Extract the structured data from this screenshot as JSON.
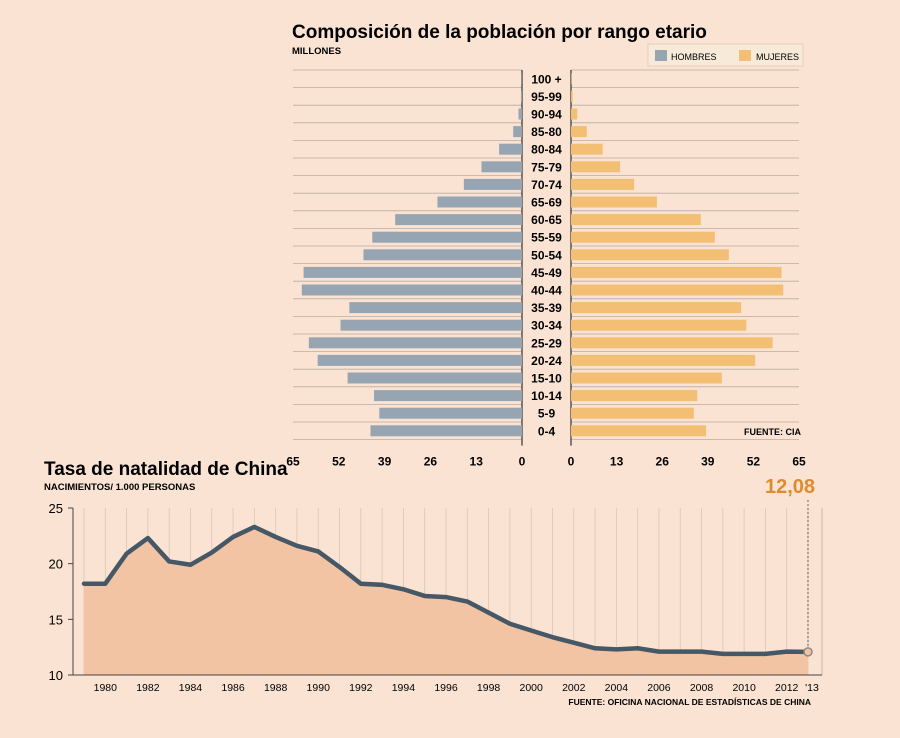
{
  "chart_data": [
    {
      "type": "bar",
      "subtype": "population-pyramid",
      "title": "Composición de la población por rango etario",
      "unit_label": "MILLONES",
      "source": "FUENTE: CIA",
      "categories": [
        "100 +",
        "95-99",
        "90-94",
        "85-80",
        "80-84",
        "75-79",
        "70-74",
        "65-69",
        "60-65",
        "55-59",
        "50-54",
        "45-49",
        "40-44",
        "35-39",
        "30-34",
        "25-29",
        "20-24",
        "15-10",
        "10-14",
        "5-9",
        "0-4"
      ],
      "series": [
        {
          "name": "HOMBRES",
          "color": "#97a5b3",
          "values": [
            0.05,
            0.3,
            1.0,
            2.5,
            6.5,
            11.5,
            16.5,
            24,
            36,
            42.5,
            45,
            62,
            62.5,
            49,
            51.5,
            60.5,
            58,
            49.5,
            42,
            40.5,
            43
          ]
        },
        {
          "name": "MUJERES",
          "color": "#f2bf74",
          "values": [
            0.1,
            0.5,
            1.8,
            4.5,
            9,
            14,
            18,
            24.5,
            37,
            41,
            45,
            60,
            60.5,
            48.5,
            50,
            57.5,
            52.5,
            43,
            36,
            35,
            38.5
          ]
        }
      ],
      "x_ticks": [
        65,
        52,
        39,
        26,
        13,
        0
      ],
      "xlim": [
        0,
        65
      ]
    },
    {
      "type": "area",
      "title": "Tasa de natalidad de China",
      "subtitle": "NACIMIENTOS/ 1.000 PERSONAS",
      "source": "FUENTE: OFICINA NACIONAL DE ESTADÍSTICAS DE CHINA",
      "highlight_label": "12,08",
      "line_color": "#465765",
      "fill_color": "#f2c4a3",
      "highlight_color": "#e08a2c",
      "ylim": [
        10,
        25
      ],
      "y_ticks": [
        10,
        15,
        20,
        25
      ],
      "x_tick_labels": [
        "1980",
        "1982",
        "1984",
        "1986",
        "1988",
        "1990",
        "1992",
        "1994",
        "1996",
        "1998",
        "2000",
        "2002",
        "2004",
        "2006",
        "2008",
        "2010",
        "2012",
        "'13"
      ],
      "x": [
        1979,
        1980,
        1981,
        1982,
        1983,
        1984,
        1985,
        1986,
        1987,
        1988,
        1989,
        1990,
        1991,
        1992,
        1993,
        1994,
        1995,
        1996,
        1997,
        1998,
        1999,
        2000,
        2001,
        2002,
        2003,
        2004,
        2005,
        2006,
        2007,
        2008,
        2009,
        2010,
        2011,
        2012,
        2013
      ],
      "values": [
        18.2,
        18.2,
        20.9,
        22.3,
        20.2,
        19.9,
        21.0,
        22.4,
        23.3,
        22.4,
        21.6,
        21.1,
        19.7,
        18.2,
        18.1,
        17.7,
        17.1,
        17.0,
        16.6,
        15.6,
        14.6,
        14.0,
        13.4,
        12.9,
        12.4,
        12.3,
        12.4,
        12.1,
        12.1,
        12.1,
        11.9,
        11.9,
        11.9,
        12.1,
        12.08
      ]
    }
  ]
}
